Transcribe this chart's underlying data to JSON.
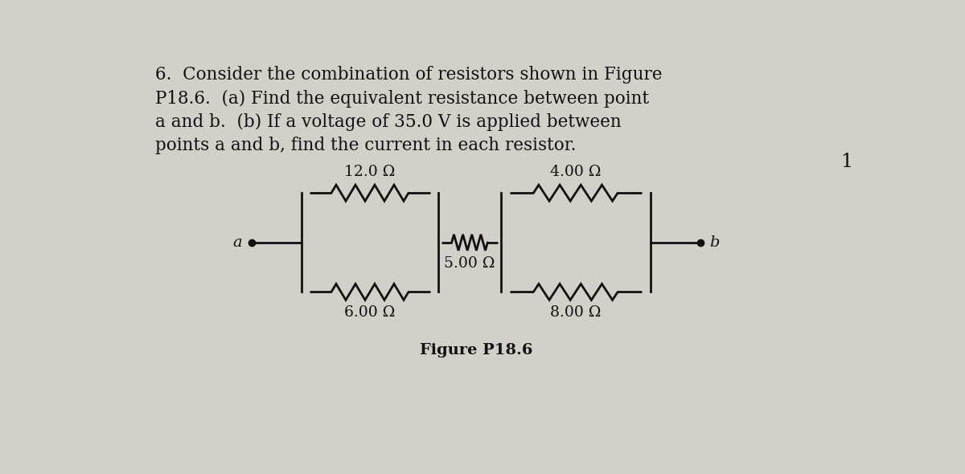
{
  "background_color": "#d4cfc8",
  "text_color": "#1a1a1a",
  "figure_label": "Figure P18.6",
  "resistors": [
    {
      "label": "12.0 Ω",
      "type": "top_left"
    },
    {
      "label": "6.00 Ω",
      "type": "bot_left"
    },
    {
      "label": "5.00 Ω",
      "type": "mid"
    },
    {
      "label": "4.00 Ω",
      "type": "top_right"
    },
    {
      "label": "8.00 Ω",
      "type": "bot_right"
    }
  ],
  "point_a_label": "a",
  "point_b_label": "b",
  "page_number": "1",
  "line_color": "#111111",
  "line_width": 2.0,
  "title_lines": [
    "6.  Consider the combination of resistors shown in Figure",
    "P18.6.  (a) Find the equivalent resistance between point",
    "a and b.  (b) If a voltage of 35.0 V is applied between",
    "points a and b, find the current in each resistor."
  ],
  "title_fontsize": 15.5,
  "label_fontsize": 13.5,
  "point_fontsize": 14,
  "figlabel_fontsize": 14
}
